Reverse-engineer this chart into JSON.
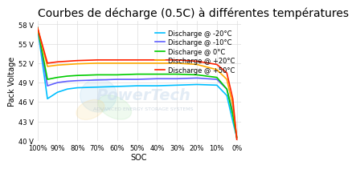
{
  "title": "Courbes de décharge (0.5C) à différentes températures",
  "xlabel": "SOC",
  "ylabel": "Pack Voltage",
  "ylim": [
    40,
    58.5
  ],
  "yticks": [
    40,
    43,
    46,
    49,
    52,
    55,
    58
  ],
  "ytick_labels": [
    "40 V",
    "43 V",
    "46 V",
    "49 V",
    "52 V",
    "55 V",
    "58 V"
  ],
  "xtick_vals": [
    100,
    90,
    80,
    70,
    60,
    50,
    40,
    30,
    20,
    10,
    0
  ],
  "xtick_labels": [
    "100%",
    "90%",
    "80%",
    "70%",
    "60%",
    "50%",
    "40%",
    "30%",
    "20%",
    "10%",
    "0%"
  ],
  "background_color": "#ffffff",
  "grid_color": "#dddddd",
  "curves": [
    {
      "label": "Discharge @ -20°C",
      "color": "#00bfff",
      "soc_points": [
        100,
        95,
        90,
        85,
        80,
        70,
        60,
        50,
        40,
        30,
        20,
        10,
        5,
        2,
        0
      ],
      "v_points": [
        57.5,
        46.5,
        47.5,
        48.0,
        48.2,
        48.3,
        48.4,
        48.5,
        48.5,
        48.6,
        48.7,
        48.6,
        47.0,
        43.0,
        40.5
      ]
    },
    {
      "label": "Discharge @ -10°C",
      "color": "#6060ff",
      "soc_points": [
        100,
        95,
        90,
        85,
        80,
        70,
        60,
        50,
        40,
        30,
        20,
        10,
        5,
        2,
        0
      ],
      "v_points": [
        57.5,
        48.5,
        49.0,
        49.2,
        49.3,
        49.4,
        49.5,
        49.5,
        49.6,
        49.6,
        49.7,
        49.5,
        48.0,
        44.5,
        40.5
      ]
    },
    {
      "label": "Discharge @ 0°C",
      "color": "#00cc00",
      "soc_points": [
        100,
        95,
        90,
        85,
        80,
        70,
        60,
        50,
        40,
        30,
        20,
        10,
        5,
        2,
        0
      ],
      "v_points": [
        57.5,
        49.5,
        49.8,
        50.0,
        50.1,
        50.2,
        50.2,
        50.3,
        50.3,
        50.3,
        50.2,
        49.8,
        48.0,
        44.0,
        40.5
      ]
    },
    {
      "label": "Discharge @ +20°C",
      "color": "#ffaa00",
      "soc_points": [
        100,
        95,
        90,
        85,
        80,
        70,
        60,
        50,
        40,
        30,
        20,
        10,
        5,
        2,
        0
      ],
      "v_points": [
        57.5,
        51.5,
        51.7,
        51.8,
        51.9,
        52.0,
        52.0,
        52.0,
        52.0,
        52.0,
        51.8,
        51.0,
        49.5,
        45.5,
        40.5
      ]
    },
    {
      "label": "Discharge @ +50°C",
      "color": "#ff2200",
      "soc_points": [
        100,
        95,
        90,
        85,
        80,
        70,
        60,
        50,
        40,
        30,
        20,
        10,
        5,
        2,
        0
      ],
      "v_points": [
        57.5,
        52.0,
        52.2,
        52.3,
        52.4,
        52.5,
        52.5,
        52.5,
        52.5,
        52.5,
        52.3,
        51.8,
        50.5,
        46.5,
        40.2
      ]
    }
  ],
  "powertech_text": "PowerTech",
  "powertech_sub": "ADVANCED ENERGY STORAGE SYSTEMS",
  "title_fontsize": 10,
  "axis_fontsize": 7,
  "tick_fontsize": 6,
  "legend_fontsize": 6
}
